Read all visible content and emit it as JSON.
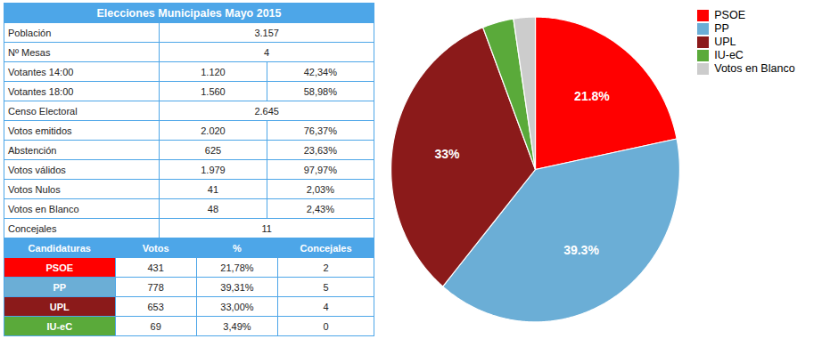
{
  "chart_data": [
    {
      "type": "table",
      "title": "Elecciones Municipales Mayo 2015",
      "color": "#4da6e8",
      "rows": [
        [
          "Población",
          "3.157",
          null
        ],
        [
          "Nº Mesas",
          "4",
          null
        ],
        [
          "Votantes 14:00",
          "1.120",
          "42,34%"
        ],
        [
          "Votantes 18:00",
          "1.560",
          "58,98%"
        ],
        [
          "Censo Electoral",
          "2.645",
          null
        ],
        [
          "Votos emitidos",
          "2.020",
          "76,37%"
        ],
        [
          "Abstención",
          "625",
          "23,63%"
        ],
        [
          "Votos válidos",
          "1.979",
          "97,97%"
        ],
        [
          "Votos Nulos",
          "41",
          "2,03%"
        ],
        [
          "Votos en Blanco",
          "48",
          "2,43%"
        ],
        [
          "Concejales",
          "11",
          null
        ]
      ]
    },
    {
      "type": "table",
      "color": "#4da6e8",
      "columns": [
        "Candidaturas",
        "Votos",
        "%",
        "Concejales"
      ],
      "rows": [
        [
          "PSOE",
          "431",
          "21,78%",
          "2"
        ],
        [
          "PP",
          "778",
          "39,31%",
          "5"
        ],
        [
          "UPL",
          "653",
          "33,00%",
          "4"
        ],
        [
          "IU-eC",
          "69",
          "3,49%",
          "0"
        ]
      ],
      "colors": [
        "#ff0000",
        "#6baed6",
        "#8b1a1a",
        "#5aaa3a"
      ]
    },
    {
      "type": "pie",
      "categories": [
        "PSOE",
        "PP",
        "UPL",
        "IU-eC",
        "Votos en Blanco"
      ],
      "values": [
        21.78,
        39.31,
        33.0,
        3.49,
        2.43
      ],
      "value_labels": [
        "21.8%",
        "39.3%",
        "33%",
        null,
        null
      ],
      "data_labels": true,
      "colors": [
        "#ff0000",
        "#6baed6",
        "#8b1a1a",
        "#5aaa3a",
        "#cccccc"
      ],
      "legend": "upper right"
    }
  ]
}
